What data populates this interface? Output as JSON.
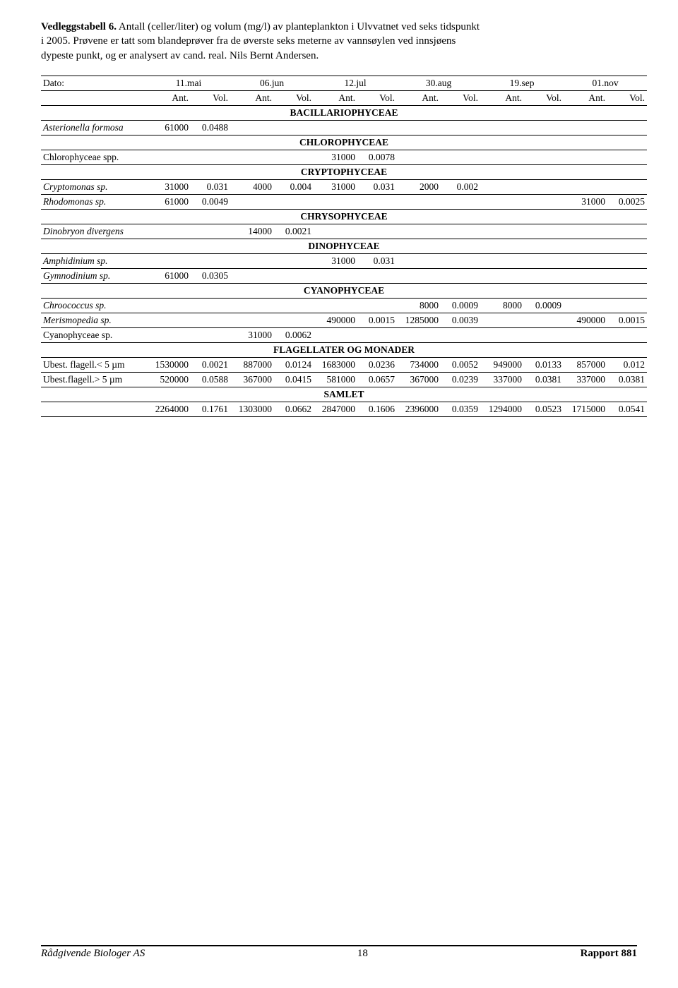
{
  "title": {
    "label": "Vedleggstabell 6.",
    "line1": " Antall (celler/liter) og volum (mg/l) av planteplankton i Ulvvatnet ved seks tidspunkt",
    "line2": "i 2005. Prøvene er tatt som blandeprøver fra de øverste seks meterne av vannsøylen ved innsjøens",
    "line3": "dypeste punkt, og er analysert av cand. real. Nils Bernt Andersen."
  },
  "header": {
    "dato": "Dato:",
    "dates": [
      "11.mai",
      "06.jun",
      "12.jul",
      "30.aug",
      "19.sep",
      "01.nov"
    ],
    "ant": "Ant.",
    "vol": "Vol."
  },
  "sections": {
    "bac": "BACILLARIOPHYCEAE",
    "chl": "CHLOROPHYCEAE",
    "cry": "CRYPTOPHYCEAE",
    "chryso": "CHRYSOPHYCEAE",
    "dino": "DINOPHYCEAE",
    "cyano": "CYANOPHYCEAE",
    "flag": "FLAGELLATER OG MONADER",
    "sam": "SAMLET"
  },
  "rows": {
    "asterionella": {
      "name": "Asterionella formosa",
      "c1a": "61000",
      "c1v": "0.0488"
    },
    "chlorophyceae": {
      "name": "Chlorophyceae spp.",
      "c3a": "31000",
      "c3v": "0.0078"
    },
    "cryptomonas": {
      "name": "Cryptomonas sp.",
      "c1a": "31000",
      "c1v": "0.031",
      "c2a": "4000",
      "c2v": "0.004",
      "c3a": "31000",
      "c3v": "0.031",
      "c4a": "2000",
      "c4v": "0.002"
    },
    "rhodomonas": {
      "name": "Rhodomonas sp.",
      "c1a": "61000",
      "c1v": "0.0049",
      "c6a": "31000",
      "c6v": "0.0025"
    },
    "dinobryon": {
      "name": "Dinobryon divergens",
      "c2a": "14000",
      "c2v": "0.0021"
    },
    "amphidinium": {
      "name": "Amphidinium sp.",
      "c3a": "31000",
      "c3v": "0.031"
    },
    "gymnodinium": {
      "name": "Gymnodinium sp.",
      "c1a": "61000",
      "c1v": "0.0305"
    },
    "chroococcus": {
      "name": "Chroococcus sp.",
      "c4a": "8000",
      "c4v": "0.0009",
      "c5a": "8000",
      "c5v": "0.0009"
    },
    "merismopedia": {
      "name": "Merismopedia sp.",
      "c3a": "490000",
      "c3v": "0.0015",
      "c4a": "1285000",
      "c4v": "0.0039",
      "c6a": "490000",
      "c6v": "0.0015"
    },
    "cyanophyceae": {
      "name": "Cyanophyceae sp.",
      "c2a": "31000",
      "c2v": "0.0062"
    },
    "ubest_lt5": {
      "name": "Ubest. flagell.< 5 µm",
      "c1a": "1530000",
      "c1v": "0.0021",
      "c2a": "887000",
      "c2v": "0.0124",
      "c3a": "1683000",
      "c3v": "0.0236",
      "c4a": "734000",
      "c4v": "0.0052",
      "c5a": "949000",
      "c5v": "0.0133",
      "c6a": "857000",
      "c6v": "0.012"
    },
    "ubest_gt5": {
      "name": "Ubest.flagell.> 5 µm",
      "c1a": "520000",
      "c1v": "0.0588",
      "c2a": "367000",
      "c2v": "0.0415",
      "c3a": "581000",
      "c3v": "0.0657",
      "c4a": "367000",
      "c4v": "0.0239",
      "c5a": "337000",
      "c5v": "0.0381",
      "c6a": "337000",
      "c6v": "0.0381"
    },
    "samlet": {
      "c1a": "2264000",
      "c1v": "0.1761",
      "c2a": "1303000",
      "c2v": "0.0662",
      "c3a": "2847000",
      "c3v": "0.1606",
      "c4a": "2396000",
      "c4v": "0.0359",
      "c5a": "1294000",
      "c5v": "0.0523",
      "c6a": "1715000",
      "c6v": "0.0541"
    }
  },
  "footer": {
    "left": "Rådgivende Biologer AS",
    "page": "18",
    "right": "Rapport 881"
  }
}
